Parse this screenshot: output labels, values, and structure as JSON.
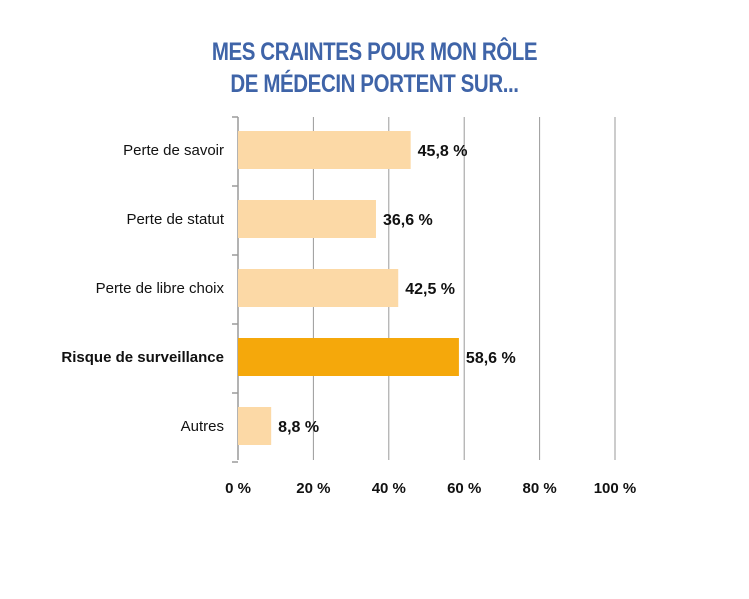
{
  "chart_data": {
    "type": "bar",
    "orientation": "horizontal",
    "title_lines": [
      "MES CRAINTES POUR MON RÔLE",
      "DE MÉDECIN PORTENT SUR..."
    ],
    "categories": [
      "Perte de savoir",
      "Perte de statut",
      "Perte de libre choix",
      "Risque de surveillance",
      "Autres"
    ],
    "values": [
      45.8,
      36.6,
      42.5,
      58.6,
      8.8
    ],
    "value_labels": [
      "45,8 %",
      "36,6 %",
      "42,5 %",
      "58,6 %",
      "8,8 %"
    ],
    "highlight_index": 3,
    "xlim": [
      0,
      100
    ],
    "xticks": [
      0,
      20,
      40,
      60,
      80,
      100
    ],
    "xtick_labels": [
      "0 %",
      "20 %",
      "40 %",
      "60 %",
      "80 %",
      "100 %"
    ],
    "grid": "vertical",
    "colors": {
      "bar": "#fcd9a6",
      "highlight": "#f5a80b",
      "title": "#3f64a8",
      "grid": "#9a9a9a"
    }
  }
}
